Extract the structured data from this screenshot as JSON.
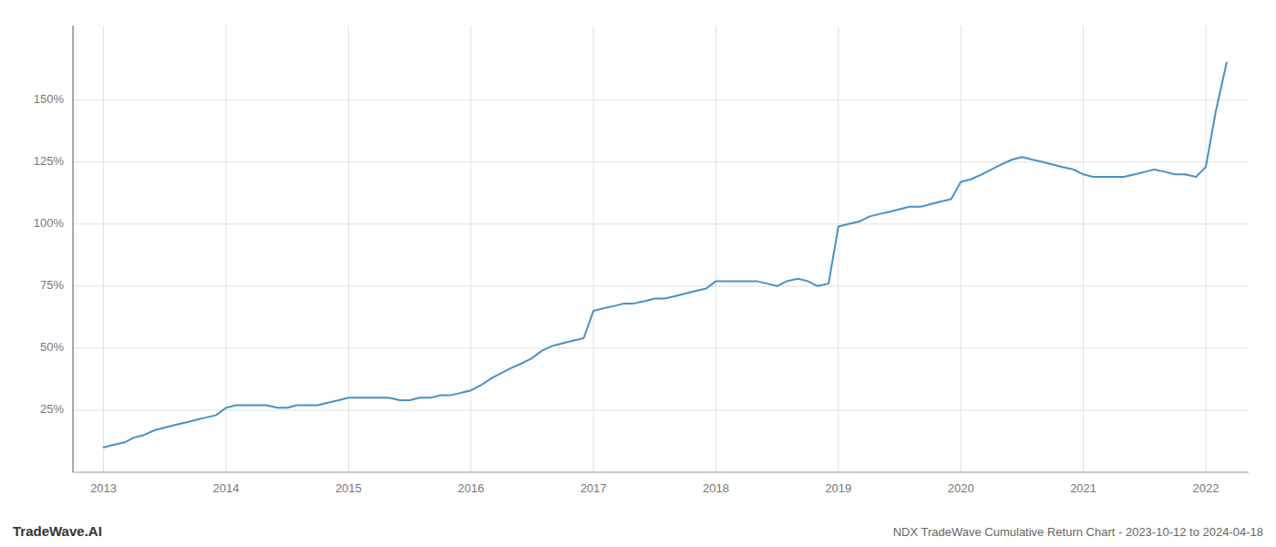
{
  "chart_data": {
    "type": "line",
    "title": "NDX TradeWave Cumulative Return Chart - 2023-10-12 to 2024-04-18",
    "annotations": [
      "TradeWave.AI"
    ],
    "color": "#4a90c4",
    "grid": true,
    "x": [
      2013.0,
      2013.08,
      2013.17,
      2013.25,
      2013.33,
      2013.42,
      2013.5,
      2013.58,
      2013.67,
      2013.75,
      2013.83,
      2013.92,
      2014.0,
      2014.08,
      2014.17,
      2014.25,
      2014.33,
      2014.42,
      2014.5,
      2014.58,
      2014.67,
      2014.75,
      2014.83,
      2014.92,
      2015.0,
      2015.08,
      2015.17,
      2015.25,
      2015.33,
      2015.42,
      2015.5,
      2015.58,
      2015.67,
      2015.75,
      2015.83,
      2015.92,
      2016.0,
      2016.08,
      2016.17,
      2016.25,
      2016.33,
      2016.42,
      2016.5,
      2016.58,
      2016.67,
      2016.75,
      2016.83,
      2016.92,
      2017.0,
      2017.08,
      2017.17,
      2017.25,
      2017.33,
      2017.42,
      2017.5,
      2017.58,
      2017.67,
      2017.75,
      2017.83,
      2017.92,
      2018.0,
      2018.08,
      2018.17,
      2018.25,
      2018.33,
      2018.42,
      2018.5,
      2018.58,
      2018.67,
      2018.75,
      2018.83,
      2018.92,
      2019.0,
      2019.08,
      2019.17,
      2019.25,
      2019.33,
      2019.42,
      2019.5,
      2019.58,
      2019.67,
      2019.75,
      2019.83,
      2019.92,
      2020.0,
      2020.08,
      2020.17,
      2020.25,
      2020.33,
      2020.42,
      2020.5,
      2020.58,
      2020.67,
      2020.75,
      2020.83,
      2020.92,
      2021.0,
      2021.08,
      2021.17,
      2021.25,
      2021.33,
      2021.42,
      2021.5,
      2021.58,
      2021.67,
      2021.75,
      2021.83,
      2021.92,
      2022.0,
      2022.08,
      2022.17
    ],
    "values": [
      10,
      11,
      12,
      14,
      15,
      17,
      18,
      19,
      20,
      21,
      22,
      23,
      26,
      27,
      27,
      27,
      27,
      26,
      26,
      27,
      27,
      27,
      28,
      29,
      30,
      30,
      30,
      30,
      30,
      29,
      29,
      30,
      30,
      31,
      31,
      32,
      33,
      35,
      38,
      40,
      42,
      44,
      46,
      49,
      51,
      52,
      53,
      54,
      65,
      66,
      67,
      68,
      68,
      69,
      70,
      70,
      71,
      72,
      73,
      74,
      77,
      77,
      77,
      77,
      77,
      76,
      75,
      77,
      78,
      77,
      75,
      76,
      99,
      100,
      101,
      103,
      104,
      105,
      106,
      107,
      107,
      108,
      109,
      110,
      117,
      118,
      120,
      122,
      124,
      126,
      127,
      126,
      125,
      124,
      123,
      122,
      120,
      119,
      119,
      119,
      119,
      120,
      121,
      122,
      121,
      120,
      120,
      119,
      123,
      145,
      165
    ],
    "xlim": [
      2012.75,
      2022.35
    ],
    "xticks": [
      2013,
      2014,
      2015,
      2016,
      2017,
      2018,
      2019,
      2020,
      2021,
      2022
    ],
    "ylim": [
      0,
      180
    ],
    "yticks": [
      {
        "value": 25,
        "label": "25%"
      },
      {
        "value": 50,
        "label": "50%"
      },
      {
        "value": 75,
        "label": "75%"
      },
      {
        "value": 100,
        "label": "100%"
      },
      {
        "value": 125,
        "label": "125%"
      },
      {
        "value": 150,
        "label": "150%"
      }
    ]
  }
}
